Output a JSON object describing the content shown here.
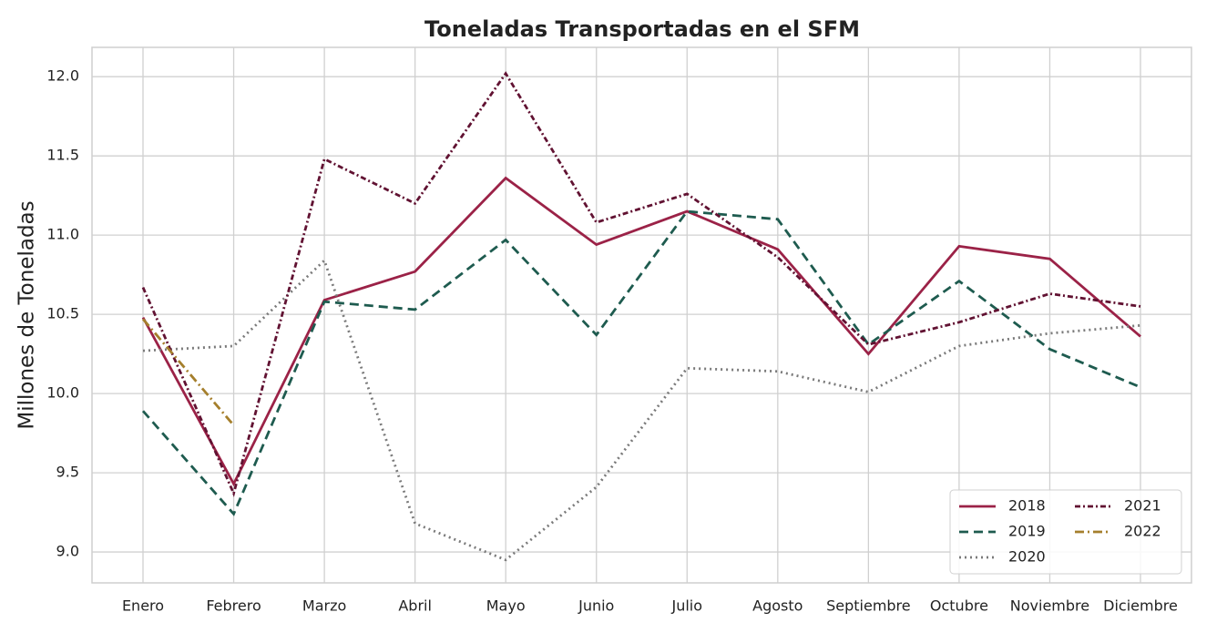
{
  "chart_data": {
    "type": "line",
    "title": "Toneladas Transportadas en el SFM",
    "y_label": "Millones de Toneladas",
    "categories": [
      "Enero",
      "Febrero",
      "Marzo",
      "Abril",
      "Mayo",
      "Junio",
      "Julio",
      "Agosto",
      "Septiembre",
      "Octubre",
      "Noviembre",
      "Diciembre"
    ],
    "series": [
      {
        "name": "2018",
        "color": "#9b2247",
        "linestyle": "solid",
        "values": [
          10.48,
          9.43,
          10.59,
          10.77,
          11.36,
          10.94,
          11.15,
          10.91,
          10.25,
          10.93,
          10.85,
          10.36
        ]
      },
      {
        "name": "2019",
        "color": "#1e5b4f",
        "linestyle": "dashed",
        "values": [
          9.89,
          9.24,
          10.58,
          10.53,
          10.97,
          10.37,
          11.15,
          11.1,
          10.31,
          10.71,
          10.28,
          10.04
        ]
      },
      {
        "name": "2020",
        "color": "#7a7a7a",
        "linestyle": "dotted",
        "values": [
          10.27,
          10.3,
          10.84,
          9.18,
          8.95,
          9.41,
          10.16,
          10.14,
          10.01,
          10.3,
          10.38,
          10.43
        ]
      },
      {
        "name": "2021",
        "color": "#611232",
        "linestyle": "dashdot",
        "values": [
          10.67,
          9.37,
          11.48,
          11.2,
          12.02,
          11.08,
          11.26,
          10.86,
          10.31,
          10.45,
          10.63,
          10.55
        ]
      },
      {
        "name": "2022",
        "color": "#a57f2c",
        "linestyle": "dashdotlong",
        "values": [
          10.47,
          9.8,
          null,
          null,
          null,
          null,
          null,
          null,
          null,
          null,
          null,
          null
        ]
      }
    ],
    "ylim": [
      8.805,
      12.185
    ],
    "yticks": [
      {
        "value": 9,
        "label": "9.0"
      },
      9.5,
      {
        "value": 10,
        "label": "10.0"
      },
      10.5,
      {
        "value": 11,
        "label": "11.0"
      },
      11.5,
      {
        "value": 12,
        "label": "12.0"
      }
    ],
    "grid": true,
    "legend": "lower right",
    "legend_columns": 2
  }
}
